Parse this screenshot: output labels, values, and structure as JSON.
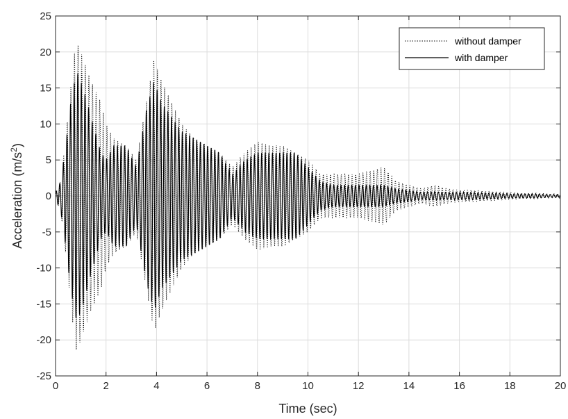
{
  "chart_data": {
    "type": "line",
    "title": "",
    "xlabel": "Time (sec)",
    "ylabel_main": "Acceleration (m/s",
    "ylabel_sup": "2",
    "ylabel_close": ")",
    "xlim": [
      0,
      20
    ],
    "ylim": [
      -25,
      25
    ],
    "xticks": [
      0,
      2,
      4,
      6,
      8,
      10,
      12,
      14,
      16,
      18,
      20
    ],
    "yticks": [
      -25,
      -20,
      -15,
      -10,
      -5,
      0,
      5,
      10,
      15,
      20,
      25
    ],
    "grid": true,
    "legend_position": "top-right",
    "series": [
      {
        "name": "without damper",
        "style": "dotted",
        "color": "#000000",
        "envelope": {
          "t": [
            0,
            0.2,
            0.4,
            0.6,
            0.8,
            0.9,
            1.1,
            1.4,
            1.8,
            2.0,
            2.3,
            2.8,
            3.2,
            3.6,
            3.9,
            4.2,
            4.6,
            5.0,
            5.5,
            6.0,
            6.5,
            7.0,
            7.5,
            8.0,
            8.5,
            9.0,
            9.5,
            10.0,
            10.5,
            11.0,
            11.5,
            12.0,
            12.5,
            13.0,
            13.5,
            14.0,
            14.5,
            15.0,
            15.5,
            16.0,
            16.5,
            17.0,
            17.5,
            18.0,
            18.5,
            19.0,
            19.5,
            20.0
          ],
          "a": [
            0.5,
            2,
            8,
            15,
            21.5,
            21,
            19,
            16,
            13,
            10,
            8,
            7,
            5,
            13,
            19,
            16,
            13,
            10,
            8,
            7,
            6,
            4,
            6,
            7.5,
            7,
            7,
            6,
            5,
            3,
            3,
            3,
            3,
            3.5,
            4,
            2,
            1.5,
            1,
            1.5,
            1,
            0.8,
            0.8,
            0.7,
            0.6,
            0.5,
            0.4,
            0.4,
            0.3,
            0.3
          ]
        },
        "cycles_per_sec": 7
      },
      {
        "name": "with damper",
        "style": "solid",
        "color": "#000000",
        "envelope": {
          "t": [
            0,
            0.2,
            0.4,
            0.6,
            0.8,
            0.9,
            1.1,
            1.4,
            1.8,
            2.0,
            2.3,
            2.8,
            3.2,
            3.6,
            3.9,
            4.2,
            4.6,
            5.0,
            5.5,
            6.0,
            6.5,
            7.0,
            7.5,
            8.0,
            8.5,
            9.0,
            9.5,
            10.0,
            10.5,
            11.0,
            11.5,
            12.0,
            12.5,
            13.0,
            13.5,
            14.0,
            14.5,
            15.0,
            15.5,
            16.0,
            16.5,
            17.0,
            17.5,
            18.0,
            18.5,
            19.0,
            19.5,
            20.0
          ],
          "a": [
            0.5,
            2,
            7,
            13,
            17,
            17,
            15,
            11,
            6,
            5,
            7,
            7,
            4,
            12,
            16,
            13,
            11,
            9,
            8,
            7,
            6,
            3,
            5,
            6,
            6,
            6,
            6,
            4,
            2,
            1.5,
            1.5,
            1.5,
            1.5,
            1.5,
            1,
            0.8,
            0.5,
            0.6,
            0.5,
            0.5,
            0.5,
            0.4,
            0.4,
            0.3,
            0.3,
            0.3,
            0.2,
            0.2
          ]
        },
        "cycles_per_sec": 7
      }
    ]
  }
}
